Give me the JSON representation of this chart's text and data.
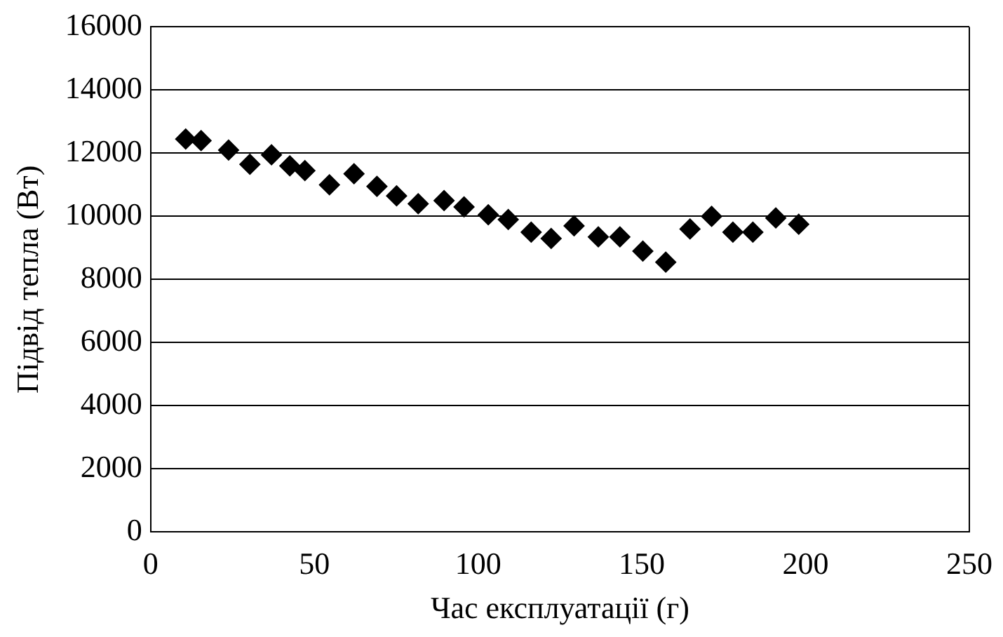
{
  "chart_data": {
    "type": "scatter",
    "xlabel": "Час експлуатації (г)",
    "ylabel": "Підвід тепла (Вт)",
    "x": [
      10.7,
      15.4,
      23.8,
      30.3,
      36.9,
      42.5,
      47.1,
      54.6,
      62.1,
      69.1,
      75.1,
      81.7,
      89.6,
      95.7,
      103.1,
      109.2,
      116.2,
      122.3,
      129.3,
      136.7,
      143.3,
      150.3,
      157.3,
      164.7,
      171.3,
      177.8,
      183.9,
      190.9,
      197.9
    ],
    "series": [
      {
        "color": "#000000",
        "values": [
          12450,
          12400,
          12100,
          11650,
          11950,
          11600,
          11450,
          11000,
          11350,
          10950,
          10650,
          10400,
          10500,
          10300,
          10050,
          9900,
          9500,
          9300,
          9700,
          9350,
          9350,
          8900,
          8550,
          9600,
          10000,
          9500,
          9500,
          9950,
          9750
        ]
      }
    ],
    "xlim": [
      0,
      250
    ],
    "xticks": [
      0,
      50,
      100,
      150,
      200,
      250
    ],
    "ylim": [
      0,
      16000
    ],
    "yticks": [
      0,
      2000,
      4000,
      6000,
      8000,
      10000,
      12000,
      14000,
      16000
    ],
    "grid": "y",
    "marker": "diamond",
    "legend": false
  }
}
